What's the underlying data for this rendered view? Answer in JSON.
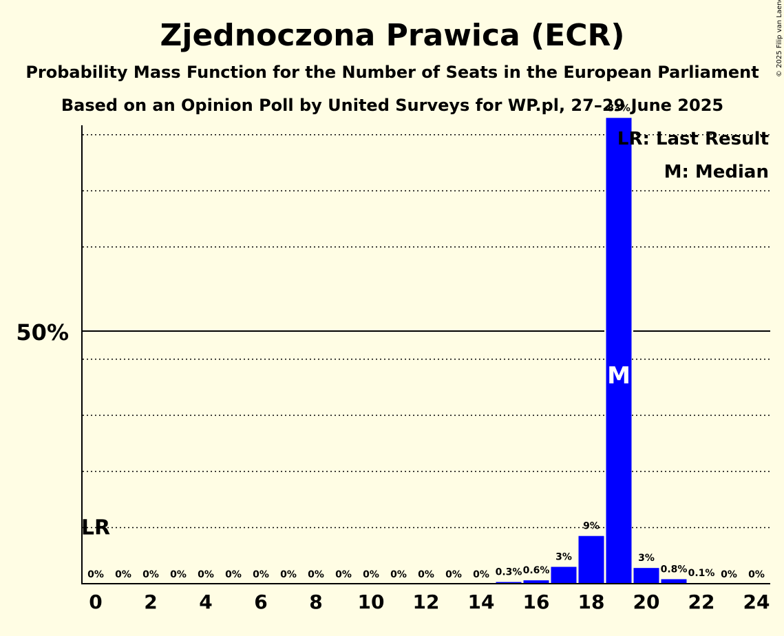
{
  "chart_data": {
    "type": "bar",
    "title": "Zjednoczona Prawica (ECR)",
    "subtitle": "Probability Mass Function for the Number of Seats in the European Parliament",
    "subtitle2": "Based on an Opinion Poll by United Surveys for WP.pl, 27–29 June 2025",
    "copyright": "© 2025 Filip van Laenen",
    "categories": [
      0,
      1,
      2,
      3,
      4,
      5,
      6,
      7,
      8,
      9,
      10,
      11,
      12,
      13,
      14,
      15,
      16,
      17,
      18,
      19,
      20,
      21,
      22,
      23,
      24
    ],
    "values": [
      0,
      0,
      0,
      0,
      0,
      0,
      0,
      0,
      0,
      0,
      0,
      0,
      0,
      0,
      0,
      0.3,
      0.6,
      3,
      8.5,
      83,
      2.8,
      0.8,
      0.1,
      0,
      0
    ],
    "value_labels": [
      "0%",
      "0%",
      "0%",
      "0%",
      "0%",
      "0%",
      "0%",
      "0%",
      "0%",
      "0%",
      "0%",
      "0%",
      "0%",
      "0%",
      "0%",
      "0.3%",
      "0.6%",
      "3%",
      "9%",
      "83%",
      "3%",
      "0.8%",
      "0.1%",
      "0%",
      "0%"
    ],
    "x_tick_labels": [
      "0",
      "2",
      "4",
      "6",
      "8",
      "10",
      "12",
      "14",
      "16",
      "18",
      "20",
      "22",
      "24"
    ],
    "y_tick_label": "50%",
    "ylim": [
      0,
      90
    ],
    "gridlines": [
      10,
      20,
      30,
      40,
      60,
      70,
      80
    ],
    "majorline": 50,
    "last_result_seat": 0,
    "last_result_level": 10,
    "last_result_marker": "LR",
    "median_seat": 19,
    "median_marker": "M",
    "legend": [
      "LR: Last Result",
      "M: Median"
    ],
    "legend_position": "top-right",
    "colors": {
      "bar": "#0000ff",
      "background": "#fffde4",
      "axis": "#000000",
      "median_text": "#ffffff"
    }
  }
}
